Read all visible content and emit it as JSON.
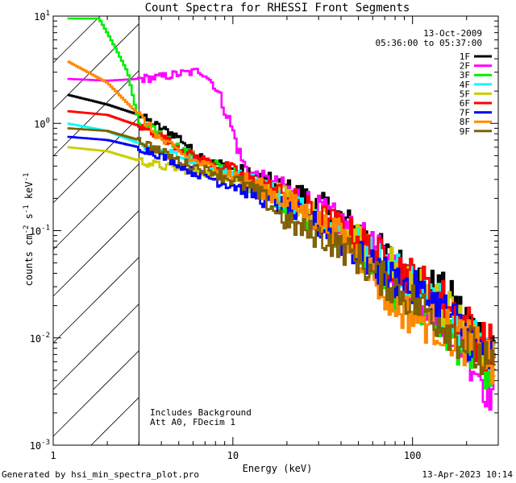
{
  "chart_data": {
    "type": "line",
    "title": "Count Spectra for RHESSI Front Segments",
    "xlabel": "Energy (keV)",
    "ylabel_parts": [
      "counts cm",
      "-2",
      " s",
      "-1",
      " keV",
      "-1"
    ],
    "xscale": "log",
    "yscale": "log",
    "xlim": [
      1,
      300
    ],
    "ylim": [
      0.001,
      10
    ],
    "x_ticks": [
      {
        "v": 1,
        "label": "1"
      },
      {
        "v": 10,
        "label": "10"
      },
      {
        "v": 100,
        "label": "100"
      }
    ],
    "y_ticks": [
      {
        "v": 10,
        "base": "10",
        "exp": "1"
      },
      {
        "v": 1,
        "base": "10",
        "exp": "0"
      },
      {
        "v": 0.1,
        "base": "10",
        "exp": "-1"
      },
      {
        "v": 0.01,
        "base": "10",
        "exp": "-2"
      },
      {
        "v": 0.001,
        "base": "10",
        "exp": "-3"
      }
    ],
    "date": "13-Oct-2009",
    "time_range": "05:36:00 to 05:37:00",
    "annotations": [
      "Includes Background",
      "Att A0, FDecim 1"
    ],
    "hatched_region_below_keV": 3,
    "series": [
      {
        "name": "1F",
        "color": "#000000",
        "points": [
          [
            1.2,
            1.85
          ],
          [
            2,
            1.5
          ],
          [
            3,
            1.2
          ],
          [
            4,
            0.9
          ],
          [
            5,
            0.75
          ],
          [
            6,
            0.55
          ],
          [
            7,
            0.48
          ],
          [
            8,
            0.42
          ],
          [
            10,
            0.38
          ],
          [
            12,
            0.33
          ],
          [
            15,
            0.29
          ],
          [
            20,
            0.24
          ],
          [
            25,
            0.21
          ],
          [
            30,
            0.17
          ],
          [
            35,
            0.16
          ],
          [
            40,
            0.13
          ],
          [
            50,
            0.1
          ],
          [
            60,
            0.075
          ],
          [
            70,
            0.06
          ],
          [
            80,
            0.05
          ],
          [
            100,
            0.04
          ],
          [
            120,
            0.03
          ],
          [
            150,
            0.025
          ],
          [
            200,
            0.015
          ],
          [
            250,
            0.009
          ],
          [
            290,
            0.008
          ]
        ]
      },
      {
        "name": "2F",
        "color": "#ff00ff",
        "points": [
          [
            1.2,
            2.6
          ],
          [
            2,
            2.5
          ],
          [
            3,
            2.6
          ],
          [
            4,
            2.7
          ],
          [
            5,
            2.9
          ],
          [
            6,
            3.0
          ],
          [
            6.5,
            3.1
          ],
          [
            7,
            2.9
          ],
          [
            8,
            2.2
          ],
          [
            9,
            1.4
          ],
          [
            10,
            0.85
          ],
          [
            11,
            0.5
          ],
          [
            12,
            0.36
          ],
          [
            15,
            0.29
          ],
          [
            20,
            0.24
          ],
          [
            25,
            0.2
          ],
          [
            30,
            0.16
          ],
          [
            40,
            0.12
          ],
          [
            50,
            0.09
          ],
          [
            60,
            0.07
          ],
          [
            80,
            0.045
          ],
          [
            100,
            0.03
          ],
          [
            150,
            0.015
          ],
          [
            200,
            0.008
          ],
          [
            250,
            0.004
          ],
          [
            290,
            0.003
          ]
        ]
      },
      {
        "name": "3F",
        "color": "#00ee00",
        "points": [
          [
            1.2,
            9.5
          ],
          [
            1.8,
            9.5
          ],
          [
            2,
            7
          ],
          [
            2.3,
            4.5
          ],
          [
            2.6,
            3.0
          ],
          [
            3,
            1.0
          ],
          [
            4,
            0.8
          ],
          [
            5,
            0.6
          ],
          [
            6,
            0.5
          ],
          [
            8,
            0.4
          ],
          [
            10,
            0.35
          ],
          [
            12,
            0.28
          ],
          [
            15,
            0.25
          ],
          [
            20,
            0.18
          ],
          [
            25,
            0.14
          ],
          [
            30,
            0.12
          ],
          [
            40,
            0.09
          ],
          [
            50,
            0.065
          ],
          [
            60,
            0.05
          ],
          [
            70,
            0.035
          ],
          [
            80,
            0.028
          ],
          [
            100,
            0.02
          ],
          [
            150,
            0.012
          ],
          [
            200,
            0.008
          ],
          [
            250,
            0.006
          ],
          [
            290,
            0.005
          ]
        ]
      },
      {
        "name": "4F",
        "color": "#00ffff",
        "points": [
          [
            1.2,
            1.0
          ],
          [
            2,
            0.85
          ],
          [
            3,
            0.65
          ],
          [
            4,
            0.55
          ],
          [
            5,
            0.5
          ],
          [
            6,
            0.45
          ],
          [
            8,
            0.38
          ],
          [
            10,
            0.33
          ],
          [
            12,
            0.29
          ],
          [
            15,
            0.25
          ],
          [
            20,
            0.2
          ],
          [
            25,
            0.16
          ],
          [
            30,
            0.13
          ],
          [
            40,
            0.1
          ],
          [
            50,
            0.08
          ],
          [
            60,
            0.06
          ],
          [
            80,
            0.045
          ],
          [
            100,
            0.035
          ],
          [
            150,
            0.02
          ],
          [
            200,
            0.012
          ],
          [
            250,
            0.008
          ],
          [
            290,
            0.006
          ]
        ]
      },
      {
        "name": "5F",
        "color": "#cccc00",
        "points": [
          [
            1.2,
            0.6
          ],
          [
            2,
            0.55
          ],
          [
            3,
            0.45
          ],
          [
            4,
            0.4
          ],
          [
            5,
            0.38
          ],
          [
            6,
            0.36
          ],
          [
            8,
            0.34
          ],
          [
            10,
            0.32
          ],
          [
            12,
            0.28
          ],
          [
            15,
            0.25
          ],
          [
            20,
            0.2
          ],
          [
            25,
            0.16
          ],
          [
            30,
            0.13
          ],
          [
            40,
            0.1
          ],
          [
            50,
            0.08
          ],
          [
            60,
            0.06
          ],
          [
            80,
            0.045
          ],
          [
            100,
            0.035
          ],
          [
            150,
            0.02
          ],
          [
            200,
            0.012
          ],
          [
            250,
            0.008
          ],
          [
            290,
            0.006
          ]
        ]
      },
      {
        "name": "6F",
        "color": "#ff0000",
        "points": [
          [
            1.2,
            1.3
          ],
          [
            2,
            1.2
          ],
          [
            3,
            0.95
          ],
          [
            4,
            0.75
          ],
          [
            5,
            0.6
          ],
          [
            6,
            0.5
          ],
          [
            8,
            0.42
          ],
          [
            10,
            0.36
          ],
          [
            12,
            0.3
          ],
          [
            15,
            0.26
          ],
          [
            20,
            0.21
          ],
          [
            25,
            0.17
          ],
          [
            30,
            0.14
          ],
          [
            40,
            0.11
          ],
          [
            50,
            0.085
          ],
          [
            60,
            0.065
          ],
          [
            80,
            0.048
          ],
          [
            100,
            0.037
          ],
          [
            150,
            0.022
          ],
          [
            200,
            0.013
          ],
          [
            250,
            0.009
          ],
          [
            290,
            0.007
          ]
        ]
      },
      {
        "name": "7F",
        "color": "#0000ff",
        "points": [
          [
            1.2,
            0.75
          ],
          [
            2,
            0.7
          ],
          [
            3,
            0.6
          ],
          [
            4,
            0.5
          ],
          [
            5,
            0.42
          ],
          [
            6,
            0.35
          ],
          [
            8,
            0.3
          ],
          [
            10,
            0.27
          ],
          [
            12,
            0.24
          ],
          [
            15,
            0.2
          ],
          [
            20,
            0.16
          ],
          [
            25,
            0.13
          ],
          [
            30,
            0.11
          ],
          [
            40,
            0.08
          ],
          [
            50,
            0.06
          ],
          [
            60,
            0.045
          ],
          [
            80,
            0.035
          ],
          [
            100,
            0.028
          ],
          [
            150,
            0.018
          ],
          [
            200,
            0.011
          ],
          [
            250,
            0.007
          ],
          [
            290,
            0.005
          ]
        ]
      },
      {
        "name": "8F",
        "color": "#ff8800",
        "points": [
          [
            1.2,
            3.8
          ],
          [
            2,
            2.4
          ],
          [
            3,
            1.2
          ],
          [
            4,
            0.7
          ],
          [
            5,
            0.55
          ],
          [
            6,
            0.45
          ],
          [
            8,
            0.38
          ],
          [
            10,
            0.33
          ],
          [
            12,
            0.29
          ],
          [
            15,
            0.24
          ],
          [
            20,
            0.19
          ],
          [
            25,
            0.15
          ],
          [
            30,
            0.12
          ],
          [
            40,
            0.09
          ],
          [
            50,
            0.06
          ],
          [
            60,
            0.04
          ],
          [
            70,
            0.025
          ],
          [
            80,
            0.02
          ],
          [
            100,
            0.016
          ],
          [
            150,
            0.012
          ],
          [
            200,
            0.009
          ],
          [
            250,
            0.007
          ],
          [
            290,
            0.005
          ]
        ]
      },
      {
        "name": "9F",
        "color": "#806000",
        "points": [
          [
            1.2,
            0.9
          ],
          [
            2,
            0.85
          ],
          [
            3,
            0.7
          ],
          [
            4,
            0.55
          ],
          [
            5,
            0.45
          ],
          [
            6,
            0.4
          ],
          [
            8,
            0.35
          ],
          [
            10,
            0.3
          ],
          [
            12,
            0.26
          ],
          [
            15,
            0.2
          ],
          [
            20,
            0.12
          ],
          [
            25,
            0.1
          ],
          [
            30,
            0.09
          ],
          [
            40,
            0.07
          ],
          [
            50,
            0.055
          ],
          [
            60,
            0.04
          ],
          [
            80,
            0.03
          ],
          [
            100,
            0.022
          ],
          [
            150,
            0.014
          ],
          [
            200,
            0.009
          ],
          [
            250,
            0.006
          ],
          [
            290,
            0.004
          ]
        ]
      }
    ]
  },
  "footer": {
    "generated_by": "Generated by hsi_min_spectra_plot.pro",
    "date": "13-Apr-2023 10:14"
  }
}
